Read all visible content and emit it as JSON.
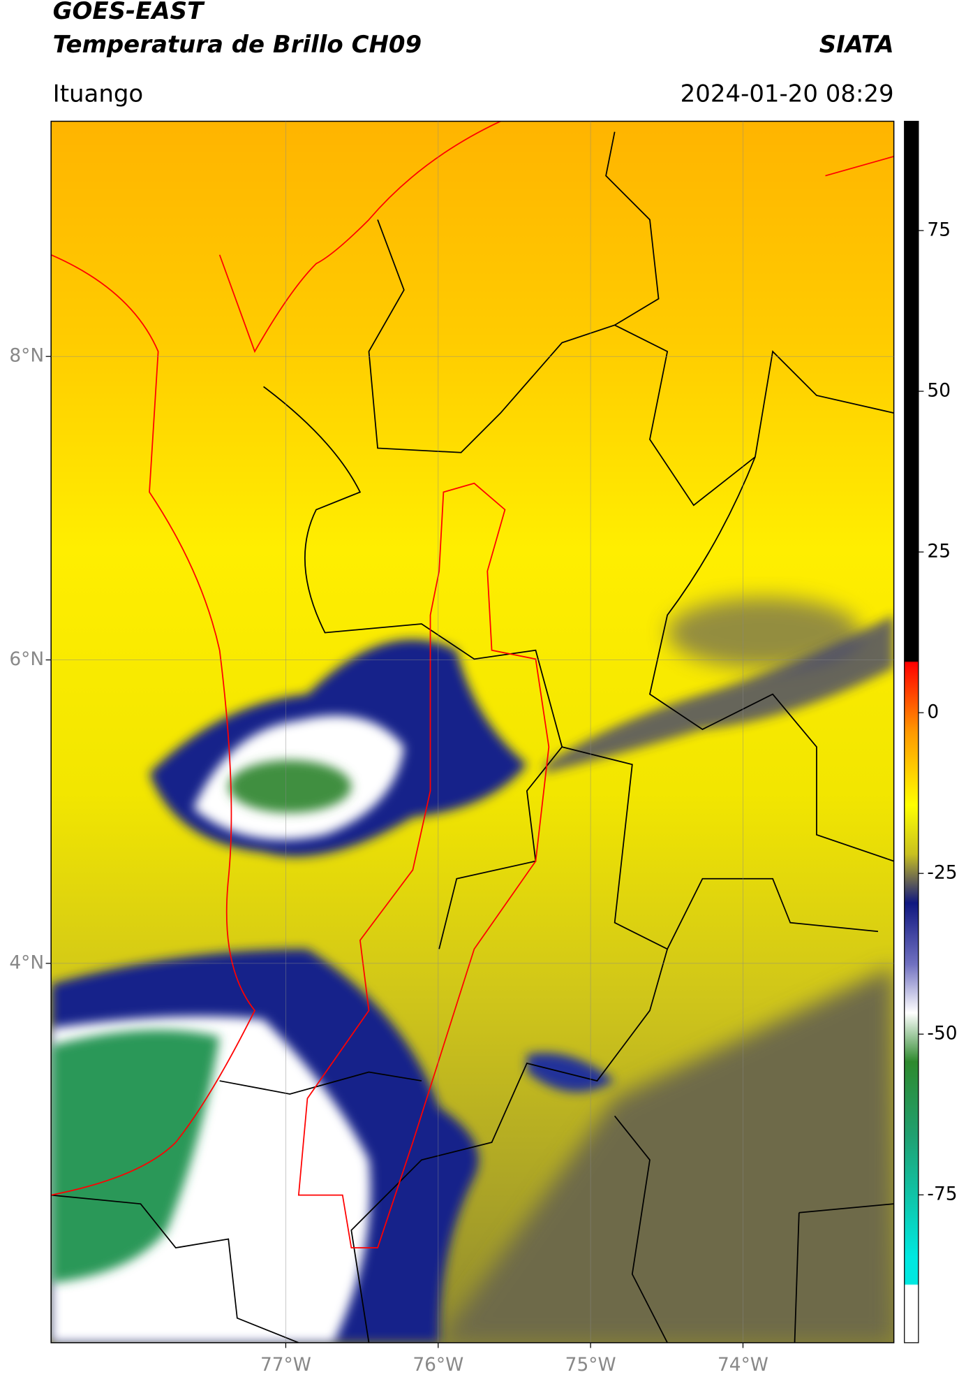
{
  "header": {
    "title": "GOES-EAST",
    "subtitle": "Temperatura de Brillo CH09",
    "source": "SIATA",
    "region": "Ituango",
    "datetime": "2024-01-20 08:29"
  },
  "map": {
    "xlim": [
      -78.54,
      -73.01
    ],
    "ylim": [
      1.5,
      9.55
    ],
    "lat_ticks": [
      {
        "value": 8,
        "label": "8°N"
      },
      {
        "value": 6,
        "label": "6°N"
      },
      {
        "value": 4,
        "label": "4°N"
      }
    ],
    "lon_ticks": [
      {
        "value": -77,
        "label": "77°W"
      },
      {
        "value": -76,
        "label": "76°W"
      },
      {
        "value": -75,
        "label": "75°W"
      },
      {
        "value": -74,
        "label": "74°W"
      }
    ]
  },
  "colorbar": {
    "lim": [
      -98,
      92
    ],
    "ticks": [
      75,
      50,
      25,
      0,
      -25,
      -50,
      -75
    ]
  }
}
